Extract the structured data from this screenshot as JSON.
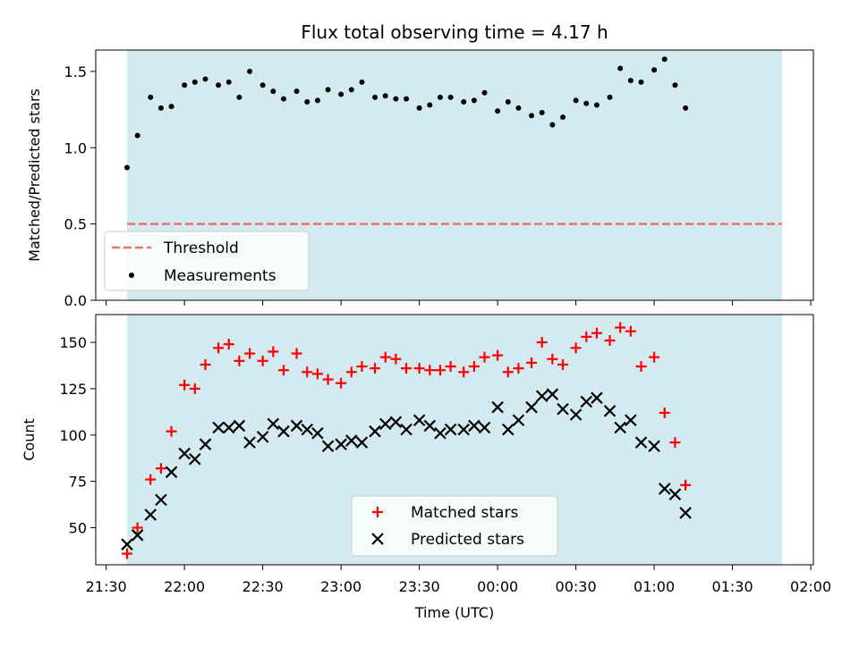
{
  "chart_data": {
    "title": "Flux total observing time = 4.17 h",
    "type": "scatter",
    "x_axis": {
      "label": "Time (UTC)",
      "range": [
        "21:26",
        "02:01"
      ],
      "ticks": [
        "21:30",
        "22:00",
        "22:30",
        "23:00",
        "23:30",
        "00:00",
        "00:30",
        "01:00",
        "01:30",
        "02:00"
      ]
    },
    "shaded_interval": {
      "from": "21:38",
      "to": "01:49",
      "color": "#d3eaf0"
    },
    "top_panel": {
      "ylabel": "Matched/Predicted stars",
      "ylim": [
        0,
        1.64
      ],
      "yticks": [
        "0.0",
        "0.5",
        "1.0",
        "1.5"
      ],
      "threshold": {
        "name": "Threshold",
        "value": 0.5,
        "from": "21:38",
        "to": "01:49",
        "color": "#f07070"
      },
      "measurements": {
        "name": "Measurements",
        "color": "#000000",
        "points": [
          [
            "21:38",
            0.87
          ],
          [
            "21:42",
            1.08
          ],
          [
            "21:47",
            1.33
          ],
          [
            "21:51",
            1.26
          ],
          [
            "21:55",
            1.27
          ],
          [
            "22:00",
            1.41
          ],
          [
            "22:04",
            1.43
          ],
          [
            "22:08",
            1.45
          ],
          [
            "22:13",
            1.41
          ],
          [
            "22:17",
            1.43
          ],
          [
            "22:21",
            1.33
          ],
          [
            "22:25",
            1.5
          ],
          [
            "22:30",
            1.41
          ],
          [
            "22:34",
            1.37
          ],
          [
            "22:38",
            1.32
          ],
          [
            "22:43",
            1.37
          ],
          [
            "22:47",
            1.3
          ],
          [
            "22:51",
            1.31
          ],
          [
            "22:55",
            1.38
          ],
          [
            "23:00",
            1.35
          ],
          [
            "23:04",
            1.38
          ],
          [
            "23:08",
            1.43
          ],
          [
            "23:13",
            1.33
          ],
          [
            "23:17",
            1.34
          ],
          [
            "23:21",
            1.32
          ],
          [
            "23:25",
            1.32
          ],
          [
            "23:30",
            1.26
          ],
          [
            "23:34",
            1.28
          ],
          [
            "23:38",
            1.33
          ],
          [
            "23:42",
            1.33
          ],
          [
            "23:47",
            1.3
          ],
          [
            "23:51",
            1.31
          ],
          [
            "23:55",
            1.36
          ],
          [
            "00:00",
            1.24
          ],
          [
            "00:04",
            1.3
          ],
          [
            "00:08",
            1.26
          ],
          [
            "00:13",
            1.21
          ],
          [
            "00:17",
            1.23
          ],
          [
            "00:21",
            1.15
          ],
          [
            "00:25",
            1.2
          ],
          [
            "00:30",
            1.31
          ],
          [
            "00:34",
            1.29
          ],
          [
            "00:38",
            1.28
          ],
          [
            "00:43",
            1.33
          ],
          [
            "00:47",
            1.52
          ],
          [
            "00:51",
            1.44
          ],
          [
            "00:55",
            1.43
          ],
          [
            "01:00",
            1.51
          ],
          [
            "01:04",
            1.58
          ],
          [
            "01:08",
            1.41
          ],
          [
            "01:12",
            1.26
          ]
        ]
      }
    },
    "bottom_panel": {
      "ylabel": "Count",
      "ylim": [
        30,
        165
      ],
      "yticks": [
        "50",
        "75",
        "100",
        "125",
        "150"
      ],
      "series": [
        {
          "name": "Matched stars",
          "marker": "+",
          "color": "#ff0000",
          "points": [
            [
              "21:38",
              36
            ],
            [
              "21:42",
              50
            ],
            [
              "21:47",
              76
            ],
            [
              "21:51",
              82
            ],
            [
              "21:55",
              102
            ],
            [
              "22:00",
              127
            ],
            [
              "22:04",
              125
            ],
            [
              "22:08",
              138
            ],
            [
              "22:13",
              147
            ],
            [
              "22:17",
              149
            ],
            [
              "22:21",
              140
            ],
            [
              "22:25",
              144
            ],
            [
              "22:30",
              140
            ],
            [
              "22:34",
              145
            ],
            [
              "22:38",
              135
            ],
            [
              "22:43",
              144
            ],
            [
              "22:47",
              134
            ],
            [
              "22:51",
              133
            ],
            [
              "22:55",
              130
            ],
            [
              "23:00",
              128
            ],
            [
              "23:04",
              134
            ],
            [
              "23:08",
              137
            ],
            [
              "23:13",
              136
            ],
            [
              "23:17",
              142
            ],
            [
              "23:21",
              141
            ],
            [
              "23:25",
              136
            ],
            [
              "23:30",
              136
            ],
            [
              "23:34",
              135
            ],
            [
              "23:38",
              135
            ],
            [
              "23:42",
              137
            ],
            [
              "23:47",
              134
            ],
            [
              "23:51",
              137
            ],
            [
              "23:55",
              142
            ],
            [
              "00:00",
              143
            ],
            [
              "00:04",
              134
            ],
            [
              "00:08",
              136
            ],
            [
              "00:13",
              139
            ],
            [
              "00:17",
              150
            ],
            [
              "00:21",
              141
            ],
            [
              "00:25",
              138
            ],
            [
              "00:30",
              147
            ],
            [
              "00:34",
              153
            ],
            [
              "00:38",
              155
            ],
            [
              "00:43",
              151
            ],
            [
              "00:47",
              158
            ],
            [
              "00:51",
              156
            ],
            [
              "00:55",
              137
            ],
            [
              "01:00",
              142
            ],
            [
              "01:04",
              112
            ],
            [
              "01:08",
              96
            ],
            [
              "01:12",
              73
            ]
          ]
        },
        {
          "name": "Predicted stars",
          "marker": "x",
          "color": "#000000",
          "points": [
            [
              "21:38",
              41
            ],
            [
              "21:42",
              46
            ],
            [
              "21:47",
              57
            ],
            [
              "21:51",
              65
            ],
            [
              "21:55",
              80
            ],
            [
              "22:00",
              90
            ],
            [
              "22:04",
              87
            ],
            [
              "22:08",
              95
            ],
            [
              "22:13",
              104
            ],
            [
              "22:17",
              104
            ],
            [
              "22:21",
              105
            ],
            [
              "22:25",
              96
            ],
            [
              "22:30",
              99
            ],
            [
              "22:34",
              106
            ],
            [
              "22:38",
              102
            ],
            [
              "22:43",
              105
            ],
            [
              "22:47",
              103
            ],
            [
              "22:51",
              101
            ],
            [
              "22:55",
              94
            ],
            [
              "23:00",
              95
            ],
            [
              "23:04",
              97
            ],
            [
              "23:08",
              96
            ],
            [
              "23:13",
              102
            ],
            [
              "23:17",
              106
            ],
            [
              "23:21",
              107
            ],
            [
              "23:25",
              103
            ],
            [
              "23:30",
              108
            ],
            [
              "23:34",
              105
            ],
            [
              "23:38",
              101
            ],
            [
              "23:42",
              103
            ],
            [
              "23:47",
              103
            ],
            [
              "23:51",
              105
            ],
            [
              "23:55",
              104
            ],
            [
              "00:00",
              115
            ],
            [
              "00:04",
              103
            ],
            [
              "00:08",
              108
            ],
            [
              "00:13",
              115
            ],
            [
              "00:17",
              121
            ],
            [
              "00:21",
              122
            ],
            [
              "00:25",
              114
            ],
            [
              "00:30",
              111
            ],
            [
              "00:34",
              118
            ],
            [
              "00:38",
              120
            ],
            [
              "00:43",
              113
            ],
            [
              "00:47",
              104
            ],
            [
              "00:51",
              108
            ],
            [
              "00:55",
              96
            ],
            [
              "01:00",
              94
            ],
            [
              "01:04",
              71
            ],
            [
              "01:08",
              68
            ],
            [
              "01:12",
              58
            ]
          ]
        }
      ]
    },
    "legend_top": {
      "position": "lower-left"
    },
    "legend_bottom": {
      "position": "lower-center"
    }
  }
}
